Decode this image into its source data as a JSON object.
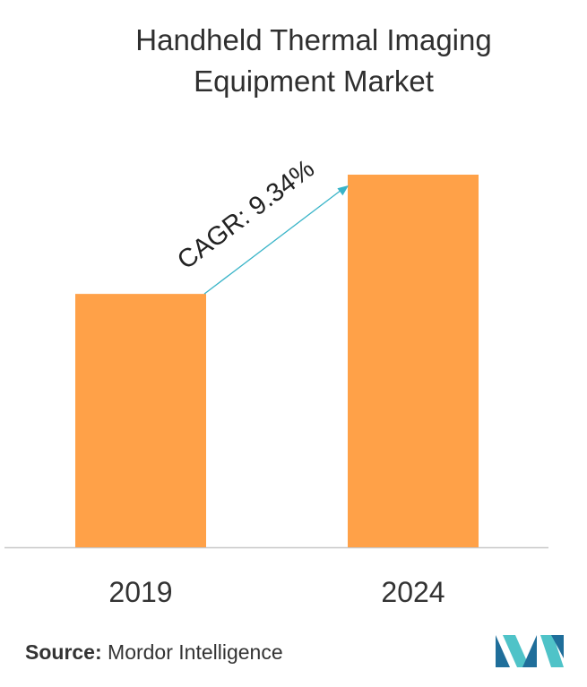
{
  "title_line1": "Handheld Thermal Imaging",
  "title_line2": "Equipment Market",
  "source_label": "Source:",
  "source_name": "Mordor Intelligence",
  "logo_icon": "mordor-intelligence-logo-icon",
  "colors": {
    "bar": "#FFA148",
    "arrow": "#39B4C8",
    "axis": "#c8c8c8",
    "text": "#333333",
    "logo_dark": "#1F6E9A",
    "logo_light": "#4FC3C8"
  },
  "chart_data": {
    "type": "bar",
    "title": "Handheld Thermal Imaging Equipment Market",
    "categories": [
      "2019",
      "2024"
    ],
    "values": [
      0.68,
      1.0
    ],
    "ylim": [
      0,
      1.0
    ],
    "grid": false,
    "annotations": [
      {
        "text": "CAGR: 9.34%",
        "type": "arrow",
        "from": "2019",
        "to": "2024"
      }
    ]
  }
}
